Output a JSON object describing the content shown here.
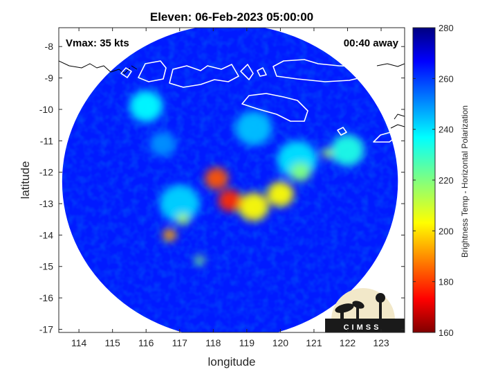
{
  "chart_data": {
    "type": "heatmap",
    "title": "Eleven: 06-Feb-2023 05:00:00",
    "xlabel": "longitude",
    "ylabel": "latitude",
    "xlim": [
      113.4,
      123.7
    ],
    "ylim": [
      -17.1,
      -7.4
    ],
    "x_ticks": [
      114,
      115,
      116,
      117,
      118,
      119,
      120,
      121,
      122,
      123
    ],
    "y_ticks": [
      -8,
      -9,
      -10,
      -11,
      -12,
      -13,
      -14,
      -15,
      -16,
      -17
    ],
    "vmax_text": "Vmax: 35 kts",
    "time_offset_text": "00:40 away",
    "colorbar": {
      "label": "Brightness Temp - Horizontal Polarization",
      "range": [
        160,
        280
      ],
      "ticks": [
        280,
        260,
        240,
        220,
        200,
        180,
        160
      ],
      "colormap": "jet"
    },
    "swath": {
      "center_lon": 118.5,
      "center_lat": -12.3,
      "radius_lon": 5.0,
      "radius_lat": 5.0,
      "background_value": 262
    },
    "features": [
      {
        "lon": 118.1,
        "lat": -12.2,
        "value": 185,
        "spread": 0.35
      },
      {
        "lon": 118.5,
        "lat": -12.9,
        "value": 180,
        "spread": 0.35
      },
      {
        "lon": 119.2,
        "lat": -13.1,
        "value": 205,
        "spread": 0.45
      },
      {
        "lon": 120.0,
        "lat": -12.7,
        "value": 205,
        "spread": 0.4
      },
      {
        "lon": 120.6,
        "lat": -12.0,
        "value": 220,
        "spread": 0.3
      },
      {
        "lon": 116.7,
        "lat": -14.0,
        "value": 195,
        "spread": 0.2
      },
      {
        "lon": 117.1,
        "lat": -13.5,
        "value": 215,
        "spread": 0.18
      },
      {
        "lon": 117.6,
        "lat": -14.8,
        "value": 220,
        "spread": 0.15
      },
      {
        "lon": 121.4,
        "lat": -11.4,
        "value": 215,
        "spread": 0.15
      },
      {
        "lon": 116.0,
        "lat": -9.9,
        "value": 235,
        "spread": 0.5
      },
      {
        "lon": 120.5,
        "lat": -11.6,
        "value": 238,
        "spread": 0.6
      },
      {
        "lon": 122.0,
        "lat": -11.3,
        "value": 232,
        "spread": 0.5
      },
      {
        "lon": 119.2,
        "lat": -10.6,
        "value": 242,
        "spread": 0.55
      },
      {
        "lon": 117.0,
        "lat": -13.0,
        "value": 240,
        "spread": 0.6
      },
      {
        "lon": 116.5,
        "lat": -11.1,
        "value": 248,
        "spread": 0.4
      }
    ]
  },
  "logo": {
    "text": "CIMSS"
  }
}
